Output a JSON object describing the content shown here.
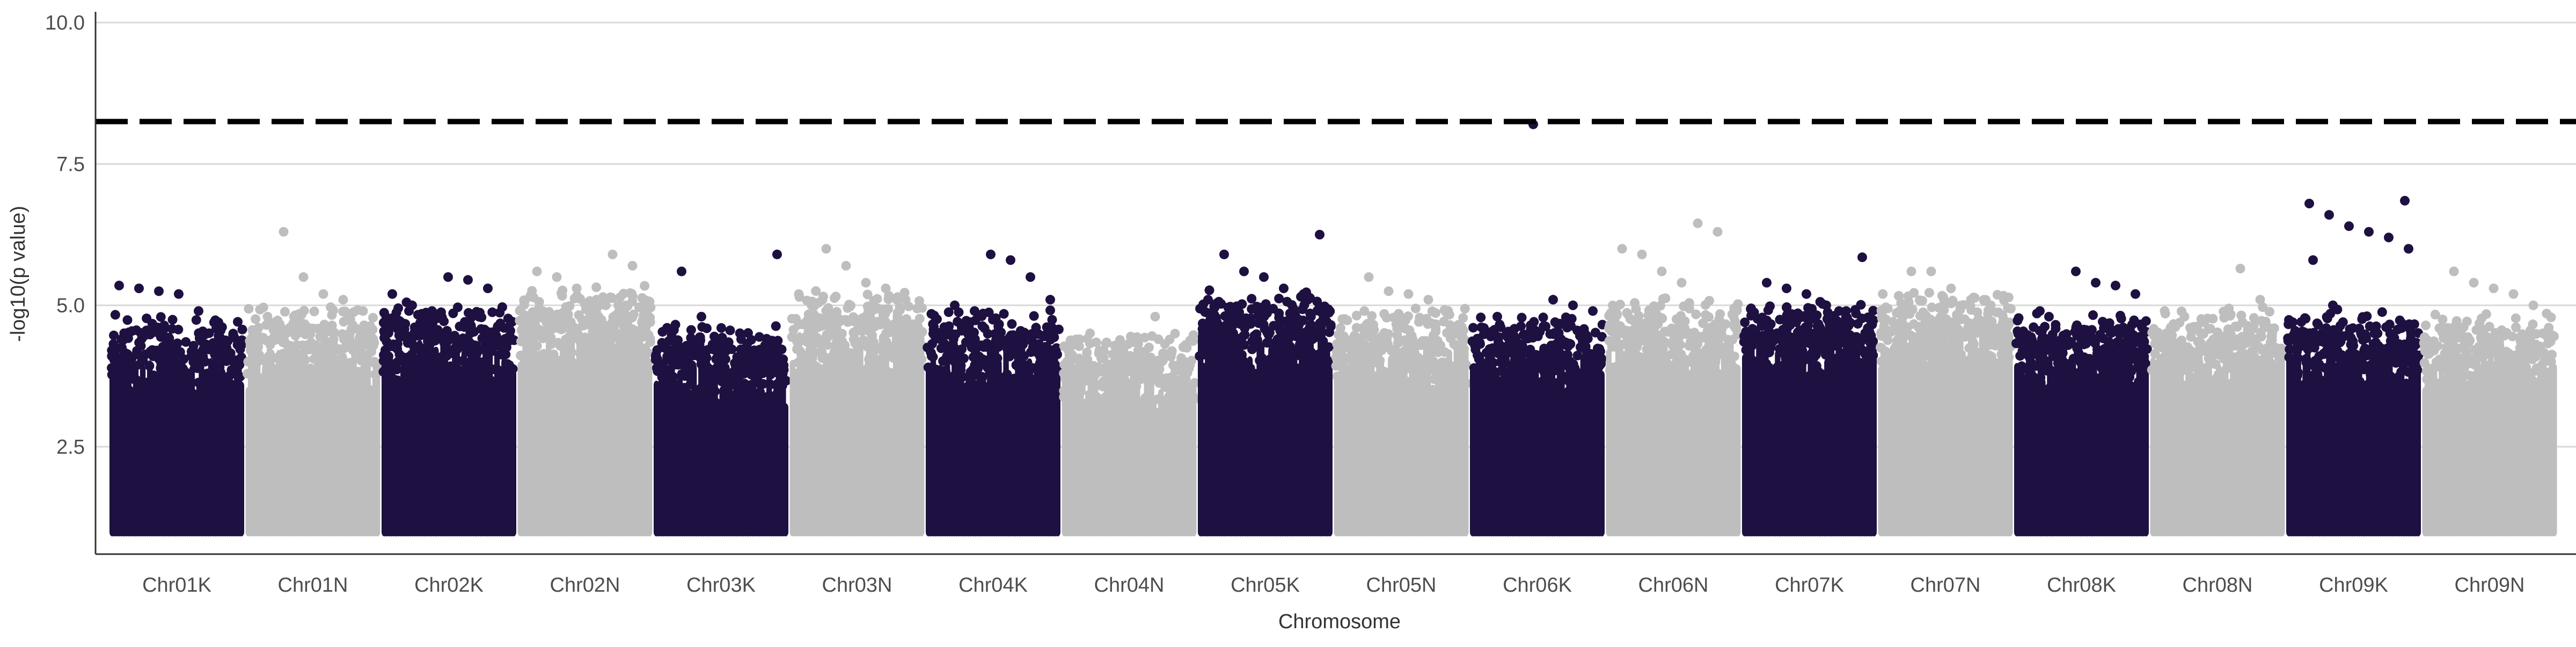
{
  "chart_data": {
    "type": "scatter",
    "subtype": "manhattan",
    "title": "",
    "xlabel": "Chromosome",
    "ylabel": "-log10(p value)",
    "ylim": [
      0.0,
      10.4
    ],
    "yticks": [
      2.5,
      5.0,
      7.5,
      10.0
    ],
    "ytick_labels": [
      "2.5",
      "5.0",
      "7.5",
      "10.0"
    ],
    "grid": "horizontal major gridlines",
    "legend": "none",
    "threshold": 8.25,
    "point_min": 1.0,
    "colors": {
      "odd": "#1e1040",
      "even": "#bebebe",
      "threshold": "#000000",
      "grid": "#d9d9d9",
      "axis": "#333333",
      "text": "#333333",
      "tick_text": "#4d4d4d"
    },
    "chromosomes": [
      {
        "label": "Chr01K",
        "color": "#1e1040",
        "base": 4.0,
        "top_hits": [
          5.35,
          5.3,
          5.25,
          5.2,
          4.9,
          4.7
        ]
      },
      {
        "label": "Chr01N",
        "color": "#bebebe",
        "base": 4.1,
        "top_hits": [
          6.3,
          5.5,
          5.2,
          5.1,
          4.9,
          4.8
        ]
      },
      {
        "label": "Chr02K",
        "color": "#1e1040",
        "base": 4.2,
        "top_hits": [
          5.5,
          5.45,
          5.3,
          5.2,
          5.0,
          4.9
        ]
      },
      {
        "label": "Chr02N",
        "color": "#bebebe",
        "base": 4.5,
        "top_hits": [
          5.9,
          5.7,
          5.6,
          5.5,
          5.3,
          5.1
        ]
      },
      {
        "label": "Chr03K",
        "color": "#1e1040",
        "base": 3.8,
        "top_hits": [
          5.9,
          5.6,
          4.8,
          4.6,
          4.4
        ]
      },
      {
        "label": "Chr03N",
        "color": "#bebebe",
        "base": 4.4,
        "top_hits": [
          6.0,
          5.7,
          5.4,
          5.3,
          5.1
        ]
      },
      {
        "label": "Chr04K",
        "color": "#1e1040",
        "base": 4.1,
        "top_hits": [
          5.9,
          5.8,
          5.5,
          5.1,
          5.0,
          4.9
        ]
      },
      {
        "label": "Chr04N",
        "color": "#bebebe",
        "base": 3.7,
        "top_hits": [
          4.8,
          4.5,
          4.4,
          4.2
        ]
      },
      {
        "label": "Chr05K",
        "color": "#1e1040",
        "base": 4.4,
        "top_hits": [
          6.25,
          5.9,
          5.6,
          5.5,
          5.3,
          5.2,
          5.1
        ]
      },
      {
        "label": "Chr05N",
        "color": "#bebebe",
        "base": 4.1,
        "top_hits": [
          5.5,
          5.25,
          5.2,
          5.1,
          4.9
        ]
      },
      {
        "label": "Chr06K",
        "color": "#1e1040",
        "base": 4.0,
        "top_hits": [
          8.2,
          5.1,
          5.0,
          4.9,
          4.8
        ]
      },
      {
        "label": "Chr06N",
        "color": "#bebebe",
        "base": 4.3,
        "top_hits": [
          6.45,
          6.3,
          6.0,
          5.9,
          5.6,
          5.4
        ]
      },
      {
        "label": "Chr07K",
        "color": "#1e1040",
        "base": 4.2,
        "top_hits": [
          5.85,
          5.4,
          5.3,
          5.2,
          5.0,
          4.9
        ]
      },
      {
        "label": "Chr07N",
        "color": "#bebebe",
        "base": 4.4,
        "top_hits": [
          5.6,
          5.6,
          5.3,
          5.1,
          5.0
        ]
      },
      {
        "label": "Chr08K",
        "color": "#1e1040",
        "base": 4.0,
        "top_hits": [
          5.6,
          5.4,
          5.35,
          5.2,
          4.9
        ]
      },
      {
        "label": "Chr08N",
        "color": "#bebebe",
        "base": 4.1,
        "top_hits": [
          5.65,
          5.1,
          4.9,
          4.8,
          4.7
        ]
      },
      {
        "label": "Chr09K",
        "color": "#1e1040",
        "base": 4.1,
        "top_hits": [
          6.85,
          6.8,
          6.6,
          6.4,
          6.3,
          6.2,
          6.0,
          5.8,
          5.0
        ]
      },
      {
        "label": "Chr09N",
        "color": "#bebebe",
        "base": 4.0,
        "top_hits": [
          5.6,
          5.4,
          5.3,
          5.2,
          5.0
        ]
      }
    ]
  }
}
